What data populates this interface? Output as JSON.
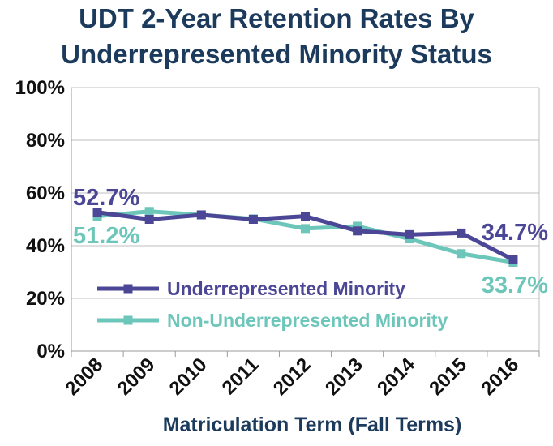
{
  "chart_data": {
    "type": "line",
    "title": [
      "UDT 2-Year Retention Rates By",
      "Underrepresented Minority Status"
    ],
    "xlabel": "Matriculation Term (Fall Terms)",
    "ylabel": "",
    "categories": [
      "2008",
      "2009",
      "2010",
      "2011",
      "2012",
      "2013",
      "2014",
      "2015",
      "2016"
    ],
    "ylim": [
      0,
      100
    ],
    "yticks": [
      0,
      20,
      40,
      60,
      80,
      100
    ],
    "ytick_labels": [
      "0%",
      "20%",
      "40%",
      "60%",
      "80%",
      "100%"
    ],
    "grid": true,
    "legend_position": "bottom-right",
    "series": [
      {
        "name": "Underrepresented Minority",
        "color": "#4b4796",
        "values": [
          52.7,
          50.0,
          51.7,
          50.0,
          51.2,
          45.6,
          44.2,
          44.8,
          34.7
        ],
        "labels": [
          {
            "index": 0,
            "text": "52.7%"
          },
          {
            "index": 8,
            "text": "34.7%"
          }
        ]
      },
      {
        "name": "Non-Underrepresented Minority",
        "color": "#6cc6b9",
        "values": [
          51.2,
          53.0,
          51.7,
          50.2,
          46.5,
          47.4,
          42.6,
          37.0,
          33.7
        ],
        "labels": [
          {
            "index": 0,
            "text": "51.2%"
          },
          {
            "index": 8,
            "text": "33.7%"
          }
        ]
      }
    ]
  }
}
